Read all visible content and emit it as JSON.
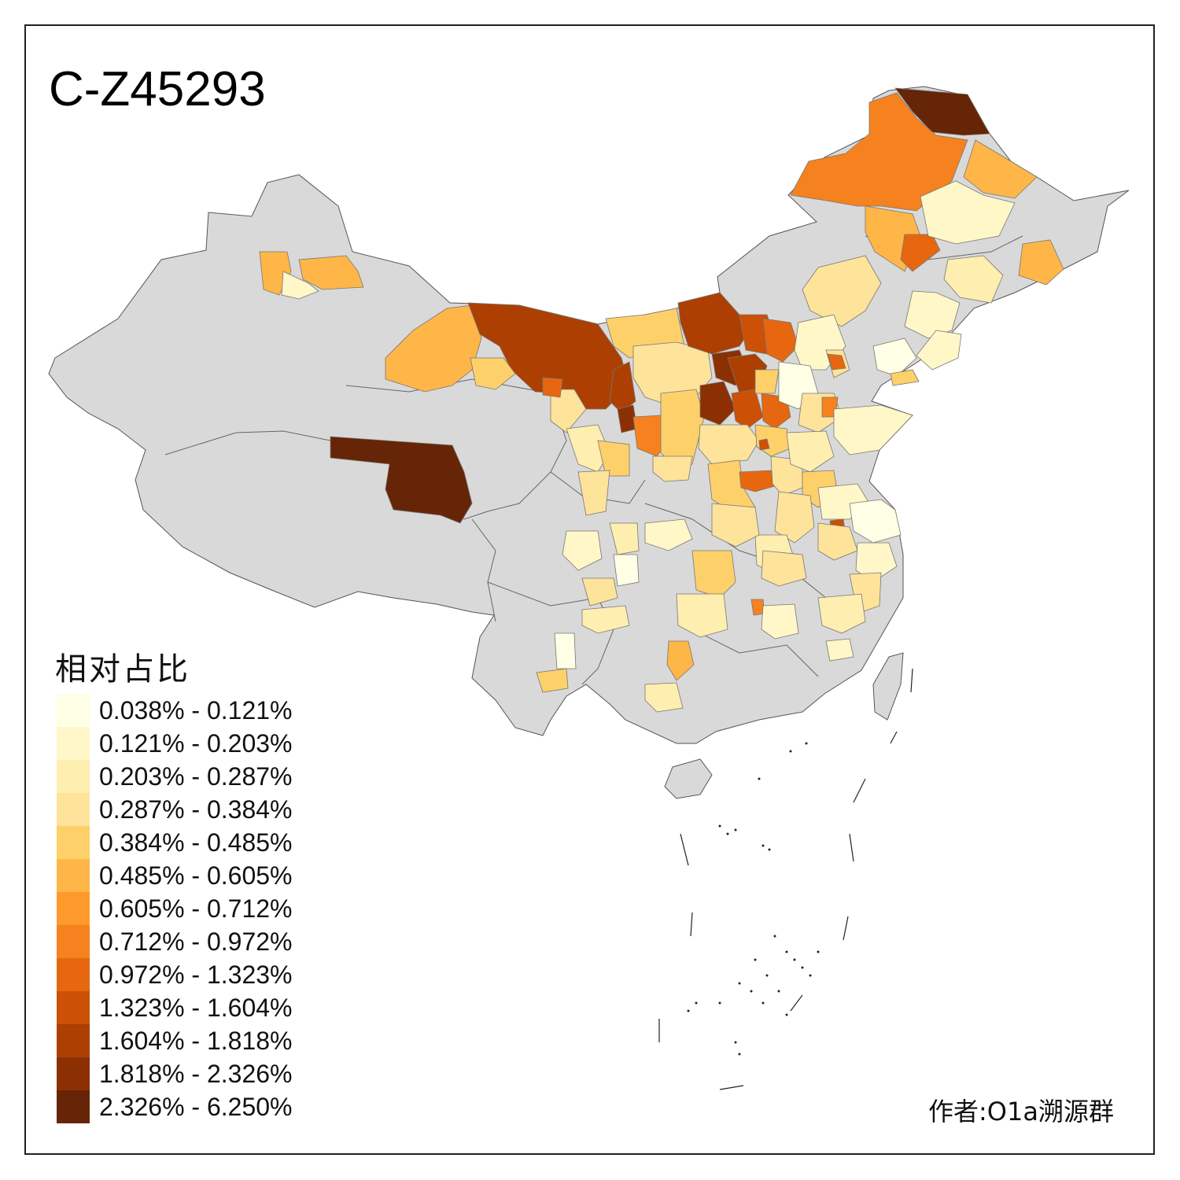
{
  "title": "C-Z45293",
  "legend": {
    "title": "相对占比",
    "items": [
      {
        "label": "0.038% - 0.121%",
        "color": "#ffffe5"
      },
      {
        "label": "0.121% - 0.203%",
        "color": "#fff7c8"
      },
      {
        "label": "0.203% - 0.287%",
        "color": "#feeeb0"
      },
      {
        "label": "0.287% - 0.384%",
        "color": "#fee39a"
      },
      {
        "label": "0.384% - 0.485%",
        "color": "#fed06a"
      },
      {
        "label": "0.485% - 0.605%",
        "color": "#feb648"
      },
      {
        "label": "0.605% - 0.712%",
        "color": "#fe9a2c"
      },
      {
        "label": "0.712% - 0.972%",
        "color": "#f5821f"
      },
      {
        "label": "0.972% - 1.323%",
        "color": "#e6670f"
      },
      {
        "label": "1.323% - 1.604%",
        "color": "#cc5005"
      },
      {
        "label": "1.604% - 1.818%",
        "color": "#ad3f03"
      },
      {
        "label": "1.818% - 2.326%",
        "color": "#8c3004"
      },
      {
        "label": "2.326% - 6.250%",
        "color": "#662506"
      }
    ]
  },
  "no_data_color": "#d9d9d9",
  "author": "作者:O1a溯源群"
}
